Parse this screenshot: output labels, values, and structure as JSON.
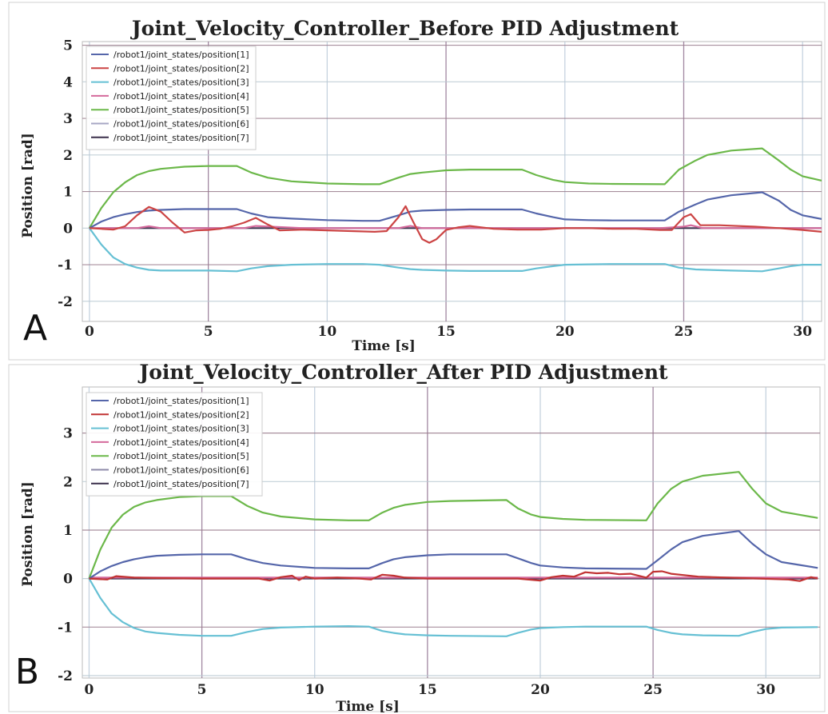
{
  "chart_data": [
    {
      "type": "line",
      "panel_letter": "A",
      "title": "Joint_Velocity_Controller_Before PID Adjustment",
      "xlabel": "Time [s]",
      "ylabel": "Position [rad]",
      "xlim": [
        -0.3,
        30.8
      ],
      "ylim": [
        -2.55,
        5.1
      ],
      "xticks": [
        0,
        5,
        10,
        15,
        20,
        25,
        30
      ],
      "yticks": [
        -2,
        -1,
        0,
        1,
        2,
        3,
        4,
        5
      ],
      "legend_position": "top-left",
      "grid": true,
      "series": [
        {
          "name": "/robot1/joint_states/position[1]",
          "color": "#5566aa",
          "x": [
            0,
            0.5,
            1,
            1.5,
            2,
            2.5,
            3,
            4,
            5,
            6.2,
            6.8,
            7.5,
            8.5,
            10,
            11.5,
            12.2,
            13,
            13.5,
            14,
            15,
            16,
            18.2,
            18.8,
            19.5,
            20,
            21,
            22,
            24.2,
            24.8,
            25.5,
            26,
            27,
            28.3,
            29,
            29.5,
            30,
            30.8
          ],
          "y": [
            0,
            0.18,
            0.3,
            0.38,
            0.44,
            0.48,
            0.5,
            0.52,
            0.52,
            0.52,
            0.4,
            0.3,
            0.26,
            0.22,
            0.2,
            0.2,
            0.35,
            0.45,
            0.48,
            0.5,
            0.51,
            0.51,
            0.4,
            0.3,
            0.24,
            0.22,
            0.21,
            0.21,
            0.45,
            0.65,
            0.78,
            0.9,
            0.98,
            0.75,
            0.5,
            0.35,
            0.25
          ]
        },
        {
          "name": "/robot1/joint_states/position[2]",
          "color": "#cc4444",
          "x": [
            0,
            0.5,
            1,
            1.5,
            2,
            2.5,
            3,
            3.5,
            4,
            4.5,
            5,
            5.5,
            6,
            6.5,
            7,
            7.5,
            8,
            9,
            10,
            11,
            12,
            12.5,
            13,
            13.3,
            13.6,
            14,
            14.3,
            14.6,
            15,
            15.5,
            16,
            17,
            18,
            19,
            20,
            21,
            22,
            23,
            24,
            24.5,
            25,
            25.3,
            25.7,
            26.5,
            28,
            29,
            30,
            30.8
          ],
          "y": [
            0,
            -0.02,
            -0.04,
            0.05,
            0.35,
            0.58,
            0.45,
            0.15,
            -0.12,
            -0.06,
            -0.05,
            -0.02,
            0.05,
            0.15,
            0.28,
            0.1,
            -0.06,
            -0.04,
            -0.06,
            -0.08,
            -0.1,
            -0.08,
            0.3,
            0.6,
            0.2,
            -0.3,
            -0.4,
            -0.3,
            -0.05,
            0.02,
            0.06,
            -0.02,
            -0.04,
            -0.04,
            0.0,
            0.0,
            -0.02,
            -0.02,
            -0.05,
            -0.05,
            0.3,
            0.38,
            0.08,
            0.08,
            0.04,
            0.0,
            -0.05,
            -0.1
          ]
        },
        {
          "name": "/robot1/joint_states/position[3]",
          "color": "#66c0d4",
          "x": [
            0,
            0.5,
            1,
            1.5,
            2,
            2.5,
            3,
            4,
            5,
            6.2,
            6.8,
            7.5,
            8.5,
            10,
            11.5,
            12.2,
            13,
            13.5,
            14,
            15,
            16,
            18.2,
            18.8,
            19.5,
            20,
            21,
            22,
            24.2,
            24.8,
            25.5,
            26,
            27,
            28.3,
            29,
            29.5,
            30,
            30.8
          ],
          "y": [
            0,
            -0.45,
            -0.8,
            -0.98,
            -1.08,
            -1.14,
            -1.16,
            -1.16,
            -1.16,
            -1.18,
            -1.1,
            -1.04,
            -1.0,
            -0.98,
            -0.98,
            -1.0,
            -1.08,
            -1.12,
            -1.14,
            -1.16,
            -1.17,
            -1.17,
            -1.1,
            -1.04,
            -1.0,
            -0.99,
            -0.98,
            -0.98,
            -1.08,
            -1.13,
            -1.14,
            -1.16,
            -1.18,
            -1.1,
            -1.04,
            -1.0,
            -1.0
          ]
        },
        {
          "name": "/robot1/joint_states/position[4]",
          "color": "#d46a9c",
          "x": [
            0,
            2,
            2.5,
            3,
            5,
            6.5,
            7,
            9,
            12,
            13,
            13.5,
            14,
            18,
            24,
            25,
            25.3,
            25.8,
            30.8
          ],
          "y": [
            0,
            0.0,
            0.05,
            0.0,
            0.0,
            0.0,
            0.06,
            0.0,
            0.0,
            0.0,
            0.06,
            0.0,
            0.0,
            0.0,
            0.04,
            0.08,
            0.0,
            0.0
          ]
        },
        {
          "name": "/robot1/joint_states/position[5]",
          "color": "#6cb84a",
          "x": [
            0,
            0.5,
            1,
            1.5,
            2,
            2.5,
            3,
            4,
            5,
            6.2,
            6.8,
            7.5,
            8.5,
            10,
            11.5,
            12.2,
            13,
            13.5,
            14,
            15,
            16,
            18.2,
            18.8,
            19.5,
            20,
            21,
            22,
            24.2,
            24.8,
            25.5,
            26,
            27,
            28.3,
            29,
            29.5,
            30,
            30.8
          ],
          "y": [
            0,
            0.55,
            0.98,
            1.25,
            1.45,
            1.56,
            1.62,
            1.68,
            1.7,
            1.7,
            1.52,
            1.38,
            1.28,
            1.22,
            1.2,
            1.2,
            1.38,
            1.48,
            1.52,
            1.58,
            1.6,
            1.6,
            1.45,
            1.32,
            1.26,
            1.22,
            1.21,
            1.2,
            1.6,
            1.85,
            2.0,
            2.12,
            2.18,
            1.85,
            1.6,
            1.42,
            1.3
          ]
        },
        {
          "name": "/robot1/joint_states/position[6]",
          "color": "#a7a7c4",
          "x": [
            0,
            30.8
          ],
          "y": [
            0.0,
            0.0
          ]
        },
        {
          "name": "/robot1/joint_states/position[7]",
          "color": "#3a2f4a",
          "x": [
            0,
            30.8
          ],
          "y": [
            0.0,
            0.0
          ]
        }
      ]
    },
    {
      "type": "line",
      "panel_letter": "B",
      "title": "Joint_Velocity_Controller_After PID Adjustment",
      "xlabel": "Time [s]",
      "ylabel": "Position [rad]",
      "xlim": [
        -0.3,
        32.4
      ],
      "ylim": [
        -2.05,
        3.95
      ],
      "xticks": [
        0,
        5,
        10,
        15,
        20,
        25,
        30
      ],
      "yticks": [
        -2,
        -1,
        0,
        1,
        2,
        3
      ],
      "legend_position": "top-left",
      "grid": true,
      "series": [
        {
          "name": "/robot1/joint_states/position[1]",
          "color": "#5566aa",
          "x": [
            0,
            0.5,
            1,
            1.5,
            2,
            2.5,
            3,
            4,
            5,
            6.3,
            7,
            7.7,
            8.5,
            10,
            11.5,
            12.4,
            13,
            13.5,
            14,
            15,
            16,
            18.5,
            19,
            19.6,
            20,
            21,
            22,
            24.7,
            25.2,
            25.8,
            26.3,
            27.2,
            28.8,
            29.4,
            30,
            30.7,
            32.3
          ],
          "y": [
            0,
            0.15,
            0.26,
            0.34,
            0.4,
            0.44,
            0.47,
            0.49,
            0.5,
            0.5,
            0.4,
            0.32,
            0.27,
            0.22,
            0.21,
            0.21,
            0.32,
            0.4,
            0.44,
            0.48,
            0.5,
            0.5,
            0.42,
            0.32,
            0.27,
            0.23,
            0.21,
            0.2,
            0.38,
            0.6,
            0.75,
            0.88,
            0.98,
            0.72,
            0.5,
            0.34,
            0.22
          ]
        },
        {
          "name": "/robot1/joint_states/position[2]",
          "color": "#c13333",
          "x": [
            0,
            0.8,
            1.2,
            2,
            3,
            5,
            7.5,
            8,
            8.5,
            9,
            9.3,
            9.6,
            10,
            11,
            12,
            12.5,
            13,
            13.5,
            14,
            15,
            17,
            19,
            20,
            20.5,
            21,
            21.5,
            22,
            22.5,
            23,
            23.5,
            24,
            24.7,
            25,
            25.4,
            25.8,
            27,
            29,
            31,
            31.5,
            32,
            32.3
          ],
          "y": [
            0,
            -0.02,
            0.05,
            0.02,
            0.01,
            0.0,
            0.0,
            -0.04,
            0.03,
            0.06,
            -0.03,
            0.04,
            0.0,
            0.02,
            0.0,
            -0.02,
            0.08,
            0.06,
            0.02,
            0.0,
            0.0,
            0.0,
            -0.04,
            0.03,
            0.06,
            0.04,
            0.13,
            0.11,
            0.12,
            0.09,
            0.1,
            0.02,
            0.14,
            0.15,
            0.1,
            0.04,
            0.01,
            -0.02,
            -0.05,
            0.03,
            0.0
          ]
        },
        {
          "name": "/robot1/joint_states/position[3]",
          "color": "#66c0d4",
          "x": [
            0,
            0.5,
            1,
            1.5,
            2,
            2.5,
            3,
            4,
            5,
            6.3,
            7,
            7.7,
            8.5,
            10,
            11.5,
            12.4,
            13,
            13.5,
            14,
            15,
            16,
            18.5,
            19,
            19.6,
            20,
            21,
            22,
            24.7,
            25.2,
            25.8,
            26.3,
            27.2,
            28.8,
            29.4,
            30,
            30.7,
            32.3
          ],
          "y": [
            0,
            -0.4,
            -0.72,
            -0.9,
            -1.02,
            -1.09,
            -1.12,
            -1.16,
            -1.18,
            -1.18,
            -1.1,
            -1.04,
            -1.01,
            -0.99,
            -0.98,
            -0.99,
            -1.08,
            -1.12,
            -1.15,
            -1.17,
            -1.18,
            -1.19,
            -1.12,
            -1.05,
            -1.02,
            -1.0,
            -0.99,
            -0.99,
            -1.06,
            -1.12,
            -1.15,
            -1.17,
            -1.18,
            -1.1,
            -1.04,
            -1.01,
            -1.0
          ]
        },
        {
          "name": "/robot1/joint_states/position[4]",
          "color": "#d46a9c",
          "x": [
            0,
            32.3
          ],
          "y": [
            0.02,
            0.02
          ]
        },
        {
          "name": "/robot1/joint_states/position[5]",
          "color": "#6cb84a",
          "x": [
            0,
            0.5,
            1,
            1.5,
            2,
            2.5,
            3,
            4,
            5,
            6.3,
            7,
            7.7,
            8.5,
            10,
            11.5,
            12.4,
            13,
            13.5,
            14,
            15,
            16,
            18.5,
            19,
            19.6,
            20,
            21,
            22,
            24.7,
            25.2,
            25.8,
            26.3,
            27.2,
            28.8,
            29.4,
            30,
            30.7,
            32.3
          ],
          "y": [
            0,
            0.6,
            1.05,
            1.32,
            1.48,
            1.57,
            1.62,
            1.68,
            1.7,
            1.7,
            1.5,
            1.36,
            1.28,
            1.22,
            1.2,
            1.2,
            1.36,
            1.46,
            1.52,
            1.58,
            1.6,
            1.62,
            1.45,
            1.32,
            1.27,
            1.23,
            1.21,
            1.2,
            1.55,
            1.85,
            2.0,
            2.12,
            2.2,
            1.85,
            1.55,
            1.38,
            1.25
          ]
        },
        {
          "name": "/robot1/joint_states/position[6]",
          "color": "#8e8aa8",
          "x": [
            0,
            32.3
          ],
          "y": [
            0.0,
            0.0
          ]
        },
        {
          "name": "/robot1/joint_states/position[7]",
          "color": "#3a2f4a",
          "x": [
            0,
            32.3
          ],
          "y": [
            0.0,
            0.0
          ]
        }
      ]
    }
  ]
}
